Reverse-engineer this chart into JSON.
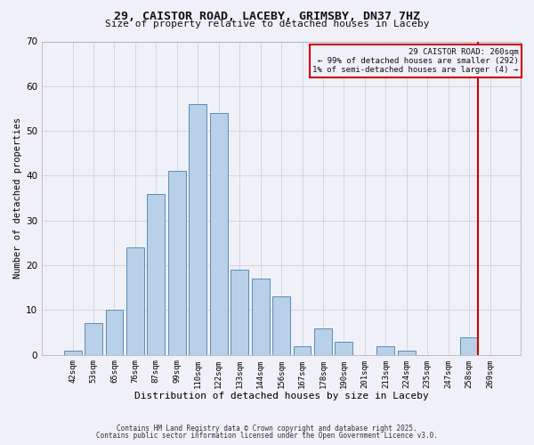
{
  "title": "29, CAISTOR ROAD, LACEBY, GRIMSBY, DN37 7HZ",
  "subtitle": "Size of property relative to detached houses in Laceby",
  "xlabel": "Distribution of detached houses by size in Laceby",
  "ylabel": "Number of detached properties",
  "bar_labels": [
    "42sqm",
    "53sqm",
    "65sqm",
    "76sqm",
    "87sqm",
    "99sqm",
    "110sqm",
    "122sqm",
    "133sqm",
    "144sqm",
    "156sqm",
    "167sqm",
    "178sqm",
    "190sqm",
    "201sqm",
    "213sqm",
    "224sqm",
    "235sqm",
    "247sqm",
    "258sqm",
    "269sqm"
  ],
  "bar_heights": [
    1,
    7,
    10,
    24,
    36,
    41,
    56,
    54,
    19,
    17,
    13,
    2,
    6,
    3,
    0,
    2,
    1,
    0,
    0,
    4,
    0
  ],
  "bar_color": "#b8d0e8",
  "bar_edge_color": "#5b8db8",
  "grid_color": "#d0d0d8",
  "vline_x_index": 19,
  "vline_color": "#cc0000",
  "annotation_title": "29 CAISTOR ROAD: 260sqm",
  "annotation_line1": "← 99% of detached houses are smaller (292)",
  "annotation_line2": "1% of semi-detached houses are larger (4) →",
  "annotation_box_edgecolor": "#cc0000",
  "ylim": [
    0,
    70
  ],
  "yticks": [
    0,
    10,
    20,
    30,
    40,
    50,
    60,
    70
  ],
  "footer1": "Contains HM Land Registry data © Crown copyright and database right 2025.",
  "footer2": "Contains public sector information licensed under the Open Government Licence v3.0.",
  "bg_color": "#f0f0f8"
}
